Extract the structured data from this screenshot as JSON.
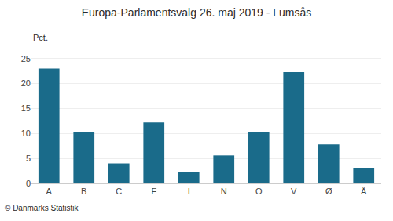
{
  "chart_data": {
    "type": "bar",
    "title": "Europa-Parlamentsvalg 26. maj 2019 - Lumsås",
    "ylabel": "Pct.",
    "annotations": [
      "© Danmarks Statistik"
    ],
    "categories": [
      "A",
      "B",
      "C",
      "F",
      "I",
      "N",
      "O",
      "V",
      "Ø",
      "Å"
    ],
    "values": [
      23.0,
      10.2,
      4.0,
      12.2,
      2.3,
      5.6,
      10.2,
      22.3,
      7.8,
      3.0
    ],
    "color": "#1a6b8a",
    "ylim": [
      0,
      27
    ],
    "yticks": [
      0,
      5,
      10,
      15,
      20,
      25
    ],
    "grid": true
  }
}
